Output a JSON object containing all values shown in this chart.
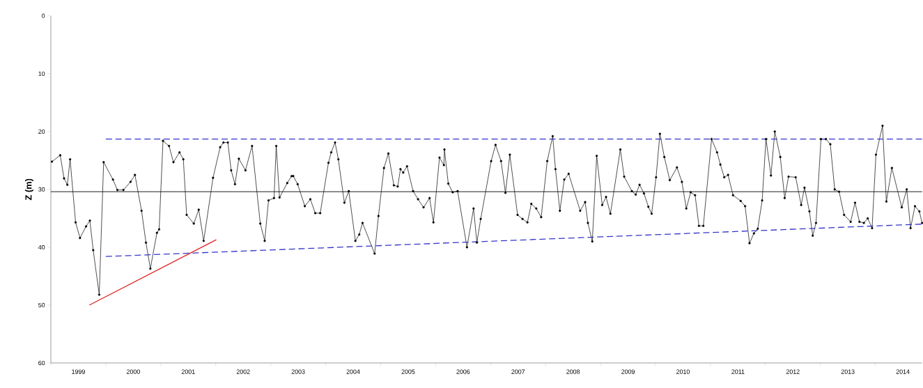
{
  "chart_data": {
    "type": "line",
    "ylabel": "Z (m)",
    "xlim": [
      1999,
      2014.85
    ],
    "ylim": [
      60,
      0
    ],
    "yticks": [
      0,
      10,
      20,
      30,
      40,
      50,
      60
    ],
    "xticks": [
      {
        "value": 1999,
        "label": null
      },
      {
        "value": 2000,
        "label": null
      },
      {
        "value": 2001,
        "label": null
      },
      {
        "value": 2002,
        "label": null
      },
      {
        "value": 2003,
        "label": null
      },
      {
        "value": 2004,
        "label": null
      },
      {
        "value": 2005,
        "label": null
      },
      {
        "value": 2006,
        "label": null
      },
      {
        "value": 2007,
        "label": null
      },
      {
        "value": 2008,
        "label": null
      },
      {
        "value": 2009,
        "label": null
      },
      {
        "value": 2010,
        "label": null
      },
      {
        "value": 2011,
        "label": null
      },
      {
        "value": 2012,
        "label": null
      },
      {
        "value": 2013,
        "label": null
      },
      {
        "value": 2014,
        "label": null
      },
      {
        "value": 1999.5,
        "label": "1999"
      },
      {
        "value": 2000.5,
        "label": "2000"
      },
      {
        "value": 2001.5,
        "label": "2001"
      },
      {
        "value": 2002.5,
        "label": "2002"
      },
      {
        "value": 2003.5,
        "label": "2003"
      },
      {
        "value": 2004.5,
        "label": "2004"
      },
      {
        "value": 2005.5,
        "label": "2005"
      },
      {
        "value": 2006.5,
        "label": "2006"
      },
      {
        "value": 2007.5,
        "label": "2007"
      },
      {
        "value": 2008.5,
        "label": "2008"
      },
      {
        "value": 2009.5,
        "label": "2009"
      },
      {
        "value": 2010.5,
        "label": "2010"
      },
      {
        "value": 2011.5,
        "label": "2011"
      },
      {
        "value": 2012.5,
        "label": "2012"
      },
      {
        "value": 2013.5,
        "label": "2013"
      },
      {
        "value": 2014.5,
        "label": "2014"
      }
    ],
    "ref_lines": [
      {
        "axis": "y",
        "value": 30.4,
        "color": "#000000"
      }
    ],
    "series": [
      {
        "color": "#000000",
        "marker": "circle",
        "line_style": "solid",
        "x": [
          1999.02,
          1999.17,
          1999.24,
          1999.3,
          1999.35,
          1999.45,
          1999.53,
          1999.64,
          1999.71,
          1999.77,
          1999.88,
          1999.96,
          2000.13,
          2000.21,
          2000.32,
          2000.45,
          2000.53,
          2000.65,
          2000.73,
          2000.81,
          2000.93,
          2000.97,
          2001.04,
          2001.15,
          2001.23,
          2001.34,
          2001.41,
          2001.47,
          2001.6,
          2001.69,
          2001.78,
          2001.95,
          2002.08,
          2002.14,
          2002.22,
          2002.28,
          2002.35,
          2002.42,
          2002.54,
          2002.66,
          2002.81,
          2002.89,
          2002.96,
          2003.06,
          2003.1,
          2003.16,
          2003.3,
          2003.38,
          2003.41,
          2003.49,
          2003.62,
          2003.72,
          2003.81,
          2003.9,
          2004.05,
          2004.1,
          2004.17,
          2004.23,
          2004.34,
          2004.42,
          2004.54,
          2004.61,
          2004.67,
          2004.89,
          2004.96,
          2005.06,
          2005.14,
          2005.24,
          2005.31,
          2005.36,
          2005.41,
          2005.48,
          2005.59,
          2005.68,
          2005.78,
          2005.89,
          2005.96,
          2006.07,
          2006.15,
          2006.16,
          2006.23,
          2006.31,
          2006.4,
          2006.57,
          2006.69,
          2006.75,
          2006.82,
          2007.01,
          2007.09,
          2007.19,
          2007.27,
          2007.35,
          2007.49,
          2007.58,
          2007.67,
          2007.74,
          2007.83,
          2007.92,
          2008.03,
          2008.13,
          2008.18,
          2008.26,
          2008.34,
          2008.42,
          2008.63,
          2008.72,
          2008.77,
          2008.85,
          2008.93,
          2009.03,
          2009.1,
          2009.18,
          2009.36,
          2009.43,
          2009.57,
          2009.64,
          2009.71,
          2009.79,
          2009.87,
          2009.93,
          2010.01,
          2010.08,
          2010.16,
          2010.26,
          2010.39,
          2010.48,
          2010.56,
          2010.64,
          2010.72,
          2010.79,
          2010.87,
          2011.02,
          2011.12,
          2011.18,
          2011.25,
          2011.32,
          2011.41,
          2011.55,
          2011.63,
          2011.71,
          2011.79,
          2011.86,
          2011.94,
          2012.01,
          2012.1,
          2012.17,
          2012.27,
          2012.35,
          2012.42,
          2012.55,
          2012.65,
          2012.71,
          2012.8,
          2012.86,
          2012.92,
          2013.01,
          2013.1,
          2013.18,
          2013.26,
          2013.34,
          2013.43,
          2013.55,
          2013.63,
          2013.71,
          2013.79,
          2013.86,
          2013.94,
          2014.01,
          2014.13,
          2014.2,
          2014.3,
          2014.48,
          2014.57,
          2014.64,
          2014.72,
          2014.8,
          2014.85
        ],
        "values": [
          25.2,
          24.1,
          28.1,
          29.2,
          24.8,
          35.7,
          38.4,
          36.4,
          35.4,
          40.5,
          48.2,
          25.3,
          28.3,
          30.1,
          30.1,
          28.7,
          27.5,
          33.7,
          39.2,
          43.7,
          37.5,
          36.9,
          21.6,
          22.5,
          25.3,
          23.6,
          24.8,
          34.4,
          35.9,
          33.5,
          38.9,
          28.0,
          22.7,
          21.9,
          21.9,
          26.7,
          29.1,
          24.7,
          26.7,
          22.5,
          35.9,
          38.9,
          31.9,
          31.5,
          22.5,
          31.4,
          28.9,
          27.7,
          27.7,
          29.1,
          32.9,
          31.7,
          34.1,
          34.1,
          25.4,
          23.6,
          21.9,
          24.8,
          32.3,
          30.3,
          38.9,
          37.8,
          35.8,
          41.1,
          34.6,
          26.3,
          23.8,
          29.3,
          29.5,
          26.5,
          27.1,
          26.0,
          30.3,
          31.7,
          33.1,
          31.5,
          35.7,
          24.5,
          25.8,
          23.1,
          29.0,
          30.5,
          30.3,
          40.0,
          33.3,
          39.2,
          35.1,
          25.1,
          22.3,
          25.1,
          30.6,
          24.0,
          34.4,
          35.1,
          35.7,
          32.5,
          33.3,
          34.8,
          25.1,
          20.8,
          26.5,
          33.7,
          28.3,
          27.3,
          33.7,
          32.2,
          35.8,
          39.0,
          24.2,
          32.7,
          31.3,
          34.2,
          23.1,
          27.8,
          30.3,
          30.9,
          29.2,
          30.7,
          33.0,
          34.2,
          27.9,
          20.4,
          24.4,
          28.4,
          26.2,
          28.7,
          33.3,
          30.5,
          31.0,
          36.3,
          36.3,
          21.3,
          23.6,
          25.7,
          27.9,
          27.5,
          31.0,
          32.0,
          32.9,
          39.3,
          37.6,
          36.8,
          31.9,
          21.3,
          27.6,
          20.0,
          24.4,
          31.5,
          27.8,
          27.9,
          32.7,
          29.7,
          33.8,
          38.0,
          35.8,
          21.3,
          21.3,
          22.2,
          30.0,
          30.4,
          34.4,
          35.6,
          32.3,
          35.6,
          35.8,
          35.0,
          36.7,
          24.0,
          19.0,
          32.1,
          26.3,
          33.1,
          30.0,
          36.7,
          32.9,
          33.8,
          35.8
        ]
      },
      {
        "color": "#3333cc",
        "marker": "none",
        "line_style": "dashed",
        "x": [
          2000.0,
          2014.85
        ],
        "values": [
          21.3,
          21.3
        ]
      },
      {
        "color": "#3333cc",
        "marker": "none",
        "line_style": "dashed",
        "x": [
          2000.0,
          2014.85
        ],
        "values": [
          41.6,
          36.0
        ]
      },
      {
        "color": "#e02020",
        "marker": "none",
        "line_style": "solid",
        "x": [
          1999.7,
          2002.01
        ],
        "values": [
          50.0,
          38.7
        ]
      }
    ]
  }
}
